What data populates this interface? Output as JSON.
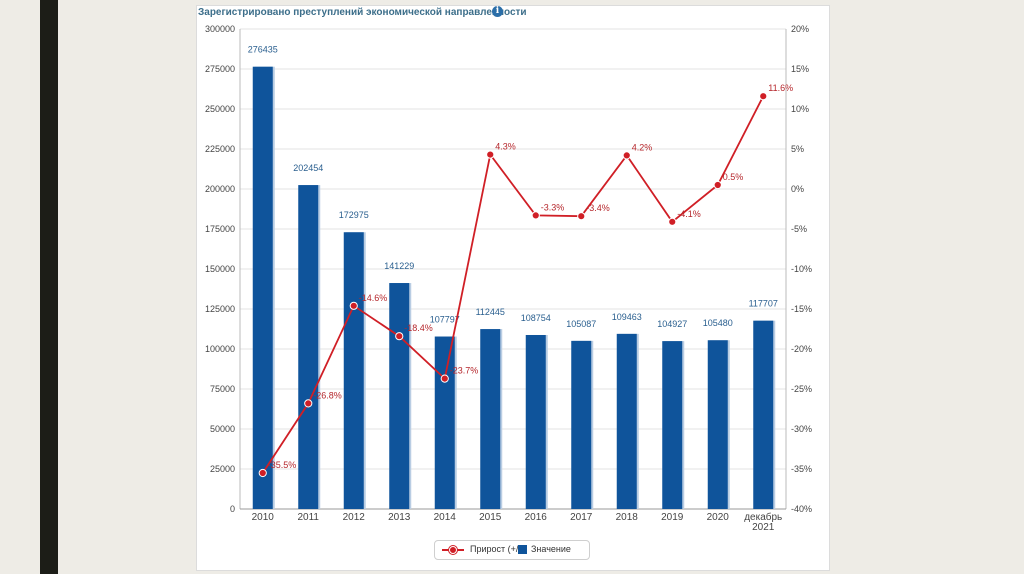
{
  "colors": {
    "bar": "#0f549b",
    "line": "#d01f26",
    "grid": "#e3e3e3",
    "axis_text": "#444444",
    "bar_label": "#2a5f8f",
    "line_label": "#b5262b"
  },
  "chart_data": {
    "type": "bar+line",
    "title": "Зарегистрировано преступлений экономической направленности",
    "categories": [
      "2010",
      "2011",
      "2012",
      "2013",
      "2014",
      "2015",
      "2016",
      "2017",
      "2018",
      "2019",
      "2020",
      "декабрь 2021"
    ],
    "category_lines": [
      [
        "2010"
      ],
      [
        "2011"
      ],
      [
        "2012"
      ],
      [
        "2013"
      ],
      [
        "2014"
      ],
      [
        "2015"
      ],
      [
        "2016"
      ],
      [
        "2017"
      ],
      [
        "2018"
      ],
      [
        "2019"
      ],
      [
        "2020"
      ],
      [
        "декабрь",
        "2021"
      ]
    ],
    "series": [
      {
        "name": "Значение",
        "type": "bar",
        "axis": "left",
        "values": [
          276435,
          202454,
          172975,
          141229,
          107797,
          112445,
          108754,
          105087,
          109463,
          104927,
          105480,
          117707
        ],
        "labels": [
          "276435",
          "202454",
          "172975",
          "141229",
          "107797",
          "112445",
          "108754",
          "105087",
          "109463",
          "104927",
          "105480",
          "117707"
        ]
      },
      {
        "name": "Прирост (+/-)",
        "type": "line",
        "axis": "right",
        "values": [
          -35.5,
          -26.8,
          -14.6,
          -18.4,
          -23.7,
          4.3,
          -3.3,
          -3.4,
          4.2,
          -4.1,
          0.5,
          11.6
        ],
        "labels": [
          "-35.5%",
          "-26.8%",
          "-14.6%",
          "-18.4%",
          "-23.7%",
          "4.3%",
          "-3.3%",
          "-3.4%",
          "4.2%",
          "-4.1%",
          "0.5%",
          "11.6%"
        ]
      }
    ],
    "y_left": {
      "min": 0,
      "max": 300000,
      "step": 25000,
      "ticks": [
        "0",
        "25000",
        "50000",
        "75000",
        "100000",
        "125000",
        "150000",
        "175000",
        "200000",
        "225000",
        "250000",
        "275000",
        "300000"
      ]
    },
    "y_right": {
      "min": -40,
      "max": 20,
      "step": 5,
      "ticks": [
        "-40%",
        "-35%",
        "-30%",
        "-25%",
        "-20%",
        "-15%",
        "-10%",
        "-5%",
        "0%",
        "5%",
        "10%",
        "15%",
        "20%"
      ]
    },
    "legend": {
      "position": "bottom-center",
      "line_label": "Прирост (+/-)",
      "bar_label": "Значение"
    }
  }
}
